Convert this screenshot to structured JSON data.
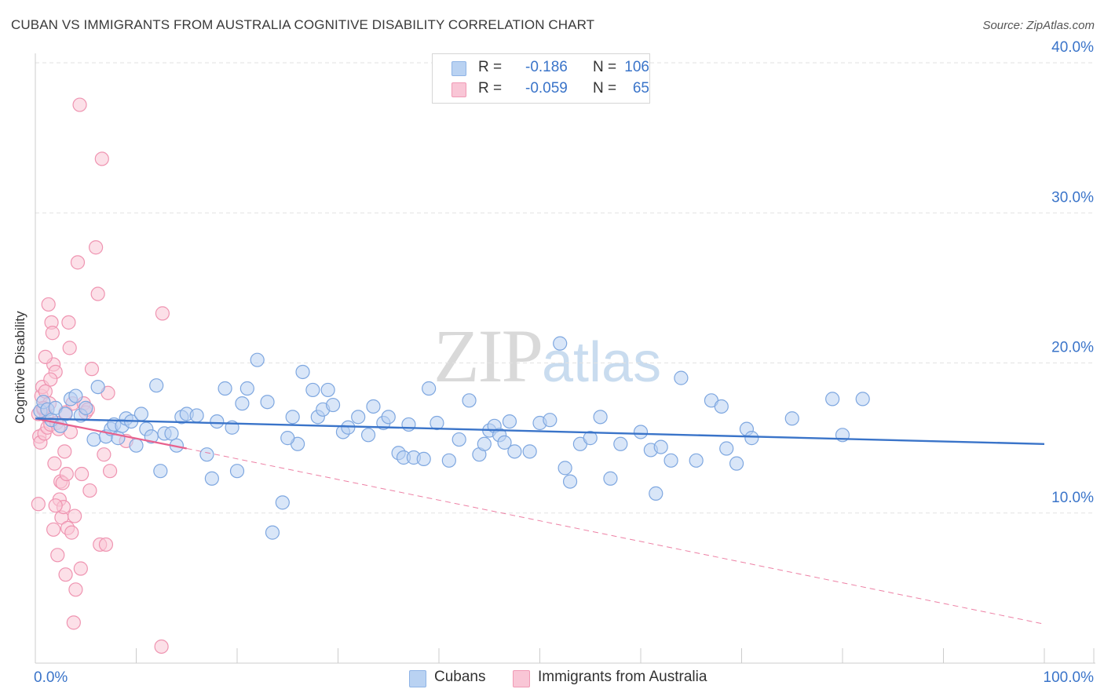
{
  "title": "CUBAN VS IMMIGRANTS FROM AUSTRALIA COGNITIVE DISABILITY CORRELATION CHART",
  "source": "Source: ZipAtlas.com",
  "watermark": {
    "zip": "ZIP",
    "atlas": "atlas"
  },
  "legend": {
    "r_label": "R =",
    "n_label": "N =",
    "series": [
      {
        "name": "Cubans",
        "r": "-0.186",
        "n": "106",
        "fill": "#b9d2f2",
        "stroke": "#8fb4e6"
      },
      {
        "name": "Immigrants from Australia",
        "r": "-0.059",
        "n": "65",
        "fill": "#f9c6d6",
        "stroke": "#f09ab5"
      }
    ]
  },
  "chart_data": {
    "type": "scatter",
    "title": "CUBAN VS IMMIGRANTS FROM AUSTRALIA COGNITIVE DISABILITY CORRELATION CHART",
    "xlabel": "",
    "ylabel": "Cognitive Disability",
    "xlim": [
      0,
      100
    ],
    "ylim": [
      0,
      40
    ],
    "x_tick_labels": [
      "0.0%",
      "100.0%"
    ],
    "y_ticks": [
      10,
      20,
      30,
      40
    ],
    "y_tick_labels": [
      "10.0%",
      "20.0%",
      "30.0%",
      "40.0%"
    ],
    "grid": true,
    "colors": {
      "blue": "#3a74c9",
      "pink": "#e8628e",
      "blue_fill": "#b9d2f2",
      "pink_fill": "#f9c6d6",
      "blue_stroke": "#7ea7e0",
      "pink_stroke": "#ef94b1",
      "grid": "#e2e2e2",
      "axis_text": "#3a74c9"
    },
    "series": [
      {
        "name": "Cubans",
        "trend": {
          "x": [
            0,
            100
          ],
          "y": [
            16.3,
            14.6
          ]
        },
        "points": [
          [
            0.5,
            16.8
          ],
          [
            0.8,
            17.4
          ],
          [
            1.2,
            16.9
          ],
          [
            1.6,
            16.2
          ],
          [
            2.0,
            17.0
          ],
          [
            2.5,
            15.8
          ],
          [
            3.0,
            16.6
          ],
          [
            3.5,
            17.6
          ],
          [
            4.0,
            17.8
          ],
          [
            4.5,
            16.5
          ],
          [
            5.0,
            17.0
          ],
          [
            5.8,
            14.9
          ],
          [
            6.2,
            18.4
          ],
          [
            7.0,
            15.1
          ],
          [
            7.5,
            15.6
          ],
          [
            7.8,
            15.9
          ],
          [
            8.2,
            15.0
          ],
          [
            8.6,
            15.8
          ],
          [
            9.0,
            16.3
          ],
          [
            9.5,
            16.1
          ],
          [
            10.0,
            14.5
          ],
          [
            10.5,
            16.6
          ],
          [
            11.0,
            15.6
          ],
          [
            11.5,
            15.1
          ],
          [
            12.0,
            18.5
          ],
          [
            12.4,
            12.8
          ],
          [
            12.8,
            15.3
          ],
          [
            13.5,
            15.3
          ],
          [
            14.0,
            14.5
          ],
          [
            14.5,
            16.4
          ],
          [
            15.0,
            16.6
          ],
          [
            16.0,
            16.5
          ],
          [
            17.0,
            13.9
          ],
          [
            17.5,
            12.3
          ],
          [
            18.0,
            16.1
          ],
          [
            18.8,
            18.3
          ],
          [
            19.5,
            15.7
          ],
          [
            20.0,
            12.8
          ],
          [
            20.5,
            17.3
          ],
          [
            21.0,
            18.3
          ],
          [
            22.0,
            20.2
          ],
          [
            23.0,
            17.4
          ],
          [
            24.5,
            10.7
          ],
          [
            25.5,
            16.4
          ],
          [
            26.0,
            14.6
          ],
          [
            26.5,
            19.4
          ],
          [
            27.5,
            18.2
          ],
          [
            28.0,
            16.4
          ],
          [
            28.5,
            16.9
          ],
          [
            29.0,
            18.2
          ],
          [
            29.5,
            17.2
          ],
          [
            30.5,
            15.4
          ],
          [
            31.0,
            15.7
          ],
          [
            32.0,
            16.4
          ],
          [
            33.0,
            15.2
          ],
          [
            33.5,
            17.1
          ],
          [
            34.5,
            16.0
          ],
          [
            35.0,
            16.4
          ],
          [
            36.0,
            14.0
          ],
          [
            36.5,
            13.7
          ],
          [
            37.0,
            15.9
          ],
          [
            37.5,
            13.7
          ],
          [
            38.5,
            13.6
          ],
          [
            39.0,
            18.3
          ],
          [
            25.0,
            15.0
          ],
          [
            23.5,
            8.7
          ],
          [
            39.8,
            16.0
          ],
          [
            41.0,
            13.5
          ],
          [
            42.0,
            14.9
          ],
          [
            43.0,
            17.5
          ],
          [
            44.0,
            13.9
          ],
          [
            44.5,
            14.6
          ],
          [
            45.0,
            15.5
          ],
          [
            45.5,
            15.8
          ],
          [
            46.0,
            15.2
          ],
          [
            46.5,
            14.7
          ],
          [
            47.0,
            16.1
          ],
          [
            47.5,
            14.1
          ],
          [
            49.0,
            14.1
          ],
          [
            50.0,
            16.0
          ],
          [
            51.0,
            16.2
          ],
          [
            52.0,
            21.3
          ],
          [
            52.5,
            13.0
          ],
          [
            53.0,
            12.1
          ],
          [
            54.0,
            14.6
          ],
          [
            55.0,
            15.0
          ],
          [
            56.0,
            16.4
          ],
          [
            57.0,
            12.3
          ],
          [
            58.0,
            14.6
          ],
          [
            60.0,
            15.4
          ],
          [
            61.0,
            14.2
          ],
          [
            61.5,
            11.3
          ],
          [
            62.0,
            14.4
          ],
          [
            63.0,
            13.5
          ],
          [
            64.0,
            19.0
          ],
          [
            65.5,
            13.5
          ],
          [
            67.0,
            17.5
          ],
          [
            68.0,
            17.1
          ],
          [
            68.5,
            14.3
          ],
          [
            69.5,
            13.3
          ],
          [
            70.5,
            15.6
          ],
          [
            71.0,
            15.0
          ],
          [
            75.0,
            16.3
          ],
          [
            79.0,
            17.6
          ],
          [
            80.0,
            15.2
          ],
          [
            82.0,
            17.6
          ]
        ]
      },
      {
        "name": "Immigrants from Australia",
        "trend": {
          "x": [
            0,
            15
          ],
          "y": [
            16.3,
            14.3
          ]
        },
        "trend_extension": {
          "x": [
            15,
            100
          ],
          "y": [
            14.3,
            2.6
          ]
        },
        "points": [
          [
            0.3,
            16.6
          ],
          [
            0.4,
            15.1
          ],
          [
            0.5,
            14.7
          ],
          [
            0.6,
            17.8
          ],
          [
            0.7,
            18.4
          ],
          [
            0.8,
            16.9
          ],
          [
            0.9,
            15.3
          ],
          [
            1.0,
            18.1
          ],
          [
            1.1,
            16.5
          ],
          [
            1.2,
            15.7
          ],
          [
            1.3,
            23.9
          ],
          [
            1.4,
            17.3
          ],
          [
            1.5,
            15.9
          ],
          [
            1.6,
            22.7
          ],
          [
            1.7,
            22.0
          ],
          [
            1.8,
            19.9
          ],
          [
            1.9,
            13.3
          ],
          [
            2.0,
            19.4
          ],
          [
            2.1,
            16.0
          ],
          [
            2.2,
            7.2
          ],
          [
            2.3,
            15.6
          ],
          [
            2.4,
            10.9
          ],
          [
            2.5,
            12.1
          ],
          [
            2.6,
            9.7
          ],
          [
            2.7,
            12.0
          ],
          [
            2.8,
            10.4
          ],
          [
            2.9,
            14.1
          ],
          [
            3.0,
            16.7
          ],
          [
            3.1,
            12.6
          ],
          [
            3.2,
            9.0
          ],
          [
            3.3,
            22.7
          ],
          [
            3.4,
            21.0
          ],
          [
            3.5,
            15.4
          ],
          [
            3.6,
            8.7
          ],
          [
            3.7,
            17.3
          ],
          [
            3.8,
            2.7
          ],
          [
            3.9,
            9.8
          ],
          [
            4.0,
            4.9
          ],
          [
            4.2,
            26.7
          ],
          [
            4.4,
            37.2
          ],
          [
            4.5,
            6.3
          ],
          [
            4.6,
            12.6
          ],
          [
            4.8,
            17.3
          ],
          [
            5.0,
            16.7
          ],
          [
            5.2,
            16.9
          ],
          [
            5.4,
            11.5
          ],
          [
            5.6,
            19.6
          ],
          [
            6.0,
            27.7
          ],
          [
            6.2,
            24.6
          ],
          [
            6.4,
            7.9
          ],
          [
            6.6,
            33.6
          ],
          [
            6.8,
            13.9
          ],
          [
            7.0,
            7.9
          ],
          [
            7.2,
            18.0
          ],
          [
            7.4,
            12.8
          ],
          [
            9.0,
            14.8
          ],
          [
            12.5,
            1.1
          ],
          [
            0.3,
            10.6
          ],
          [
            1.0,
            20.4
          ],
          [
            1.5,
            18.9
          ],
          [
            2.0,
            10.5
          ],
          [
            3.0,
            5.9
          ],
          [
            1.8,
            8.9
          ],
          [
            0.8,
            17.0
          ],
          [
            12.6,
            23.3
          ]
        ]
      }
    ]
  }
}
